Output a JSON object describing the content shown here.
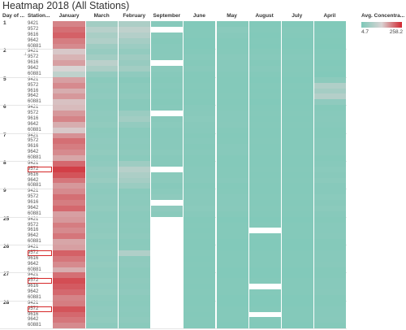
{
  "title": "Heatmap 2018 (All Stations)",
  "headers": {
    "day": "Day of ...",
    "station": "Station..."
  },
  "legend": {
    "title": "Avg. Concentra...",
    "min": "4.7",
    "max": "258.2"
  },
  "highlighted_station": "9572",
  "colors": {
    "low": "#7dc8b8",
    "mid": "#d9d4d4",
    "high": "#d1262f",
    "missing": "#ffffff"
  },
  "chart_data": {
    "type": "heatmap",
    "title": "Heatmap 2018 (All Stations)",
    "columns": [
      "January",
      "March",
      "February",
      "September",
      "June",
      "May",
      "August",
      "July",
      "April"
    ],
    "color_legend": {
      "label": "Avg. Concentra...",
      "min": 4.7,
      "max": 258.2
    },
    "days": [
      {
        "day": "1",
        "stations": [
          "9421",
          "9572",
          "9616",
          "9642",
          "60881"
        ],
        "values": [
          [
            190,
            55,
            70,
            18,
            12,
            14,
            12,
            12,
            10
          ],
          [
            205,
            85,
            95,
            null,
            15,
            22,
            14,
            16,
            12
          ],
          [
            215,
            65,
            80,
            20,
            14,
            18,
            12,
            14,
            13
          ],
          [
            195,
            75,
            60,
            16,
            12,
            15,
            13,
            12,
            11
          ],
          [
            185,
            50,
            48,
            18,
            12,
            14,
            12,
            12,
            10
          ]
        ]
      },
      {
        "day": "2",
        "stations": [
          "9421",
          "9572",
          "9616",
          "9642",
          "60881"
        ],
        "values": [
          [
            140,
            40,
            35,
            18,
            15,
            16,
            16,
            15,
            13
          ],
          [
            155,
            55,
            50,
            20,
            18,
            20,
            18,
            17,
            14
          ],
          [
            170,
            90,
            40,
            null,
            16,
            18,
            15,
            15,
            12
          ],
          [
            130,
            70,
            55,
            22,
            20,
            19,
            18,
            16,
            15
          ],
          [
            95,
            35,
            30,
            18,
            14,
            16,
            15,
            15,
            12
          ]
        ]
      },
      {
        "day": "5",
        "stations": [
          "9421",
          "9572",
          "9616",
          "9642",
          "60881"
        ],
        "values": [
          [
            170,
            22,
            18,
            16,
            14,
            14,
            12,
            12,
            25
          ],
          [
            185,
            28,
            24,
            18,
            16,
            15,
            14,
            14,
            75
          ],
          [
            160,
            26,
            22,
            16,
            15,
            14,
            13,
            13,
            60
          ],
          [
            175,
            30,
            28,
            18,
            16,
            16,
            14,
            14,
            80
          ],
          [
            145,
            22,
            20,
            16,
            14,
            14,
            12,
            13,
            30
          ]
        ]
      },
      {
        "day": "6",
        "stations": [
          "9421",
          "9572",
          "9616",
          "9642",
          "60881"
        ],
        "values": [
          [
            150,
            24,
            20,
            18,
            18,
            16,
            14,
            14,
            16
          ],
          [
            175,
            30,
            45,
            null,
            20,
            18,
            16,
            16,
            18
          ],
          [
            190,
            28,
            55,
            20,
            22,
            18,
            15,
            15,
            20
          ],
          [
            160,
            32,
            35,
            22,
            20,
            20,
            16,
            16,
            18
          ],
          [
            140,
            24,
            22,
            18,
            18,
            16,
            14,
            14,
            16
          ]
        ]
      },
      {
        "day": "7",
        "stations": [
          "9421",
          "9572",
          "9616",
          "9642",
          "60881"
        ],
        "values": [
          [
            180,
            26,
            22,
            18,
            16,
            15,
            14,
            14,
            16
          ],
          [
            205,
            30,
            26,
            20,
            18,
            16,
            16,
            15,
            18
          ],
          [
            195,
            28,
            24,
            20,
            16,
            18,
            15,
            14,
            18
          ],
          [
            185,
            32,
            28,
            22,
            18,
            18,
            16,
            16,
            20
          ],
          [
            165,
            26,
            22,
            18,
            16,
            15,
            14,
            14,
            16
          ]
        ]
      },
      {
        "day": "8",
        "stations": [
          "9421",
          "9572",
          "9616",
          "9642",
          "60881"
        ],
        "values": [
          [
            210,
            30,
            50,
            18,
            16,
            14,
            14,
            14,
            18
          ],
          [
            240,
            40,
            85,
            null,
            18,
            16,
            16,
            16,
            22
          ],
          [
            225,
            35,
            70,
            22,
            18,
            16,
            15,
            15,
            20
          ],
          [
            200,
            42,
            60,
            24,
            20,
            18,
            16,
            16,
            24
          ],
          [
            175,
            30,
            45,
            18,
            16,
            15,
            14,
            14,
            18
          ]
        ]
      },
      {
        "day": "9",
        "stations": [
          "9421",
          "9572",
          "9616",
          "9642",
          "60881"
        ],
        "values": [
          [
            185,
            26,
            22,
            22,
            18,
            16,
            14,
            14,
            18
          ],
          [
            205,
            30,
            26,
            28,
            20,
            18,
            16,
            16,
            22
          ],
          [
            195,
            28,
            24,
            null,
            20,
            18,
            15,
            15,
            20
          ],
          [
            210,
            32,
            28,
            30,
            22,
            20,
            16,
            16,
            24
          ],
          [
            170,
            26,
            22,
            22,
            18,
            16,
            14,
            14,
            18
          ]
        ]
      },
      {
        "day": "25",
        "stations": [
          "9421",
          "9572",
          "9616",
          "9642",
          "60881"
        ],
        "values": [
          [
            175,
            26,
            22,
            null,
            14,
            12,
            12,
            12,
            16
          ],
          [
            195,
            30,
            26,
            null,
            16,
            14,
            14,
            14,
            18
          ],
          [
            185,
            28,
            24,
            null,
            15,
            14,
            null,
            14,
            18
          ],
          [
            200,
            32,
            28,
            null,
            16,
            15,
            14,
            15,
            20
          ],
          [
            165,
            26,
            22,
            null,
            14,
            12,
            12,
            12,
            16
          ]
        ]
      },
      {
        "day": "26",
        "stations": [
          "9421",
          "9572",
          "9616",
          "9642",
          "60881"
        ],
        "values": [
          [
            170,
            28,
            24,
            null,
            14,
            12,
            12,
            12,
            16
          ],
          [
            215,
            32,
            75,
            null,
            16,
            14,
            14,
            14,
            18
          ],
          [
            200,
            30,
            28,
            null,
            15,
            14,
            14,
            14,
            18
          ],
          [
            185,
            34,
            30,
            null,
            16,
            15,
            14,
            15,
            20
          ],
          [
            160,
            28,
            24,
            null,
            14,
            12,
            12,
            12,
            16
          ]
        ]
      },
      {
        "day": "27",
        "stations": [
          "9421",
          "9572",
          "9616",
          "9642",
          "60881"
        ],
        "values": [
          [
            205,
            28,
            24,
            null,
            14,
            12,
            12,
            12,
            16
          ],
          [
            230,
            32,
            28,
            null,
            16,
            14,
            14,
            14,
            18
          ],
          [
            220,
            30,
            26,
            null,
            15,
            14,
            null,
            14,
            18
          ],
          [
            210,
            34,
            30,
            null,
            16,
            15,
            14,
            15,
            20
          ],
          [
            190,
            28,
            24,
            null,
            14,
            12,
            12,
            12,
            16
          ]
        ]
      },
      {
        "day": "28",
        "stations": [
          "9421",
          "9572",
          "9616",
          "9642",
          "60881"
        ],
        "values": [
          [
            195,
            26,
            22,
            null,
            14,
            12,
            12,
            12,
            16
          ],
          [
            225,
            30,
            26,
            null,
            16,
            14,
            14,
            14,
            18
          ],
          [
            210,
            28,
            24,
            null,
            15,
            14,
            null,
            14,
            18
          ],
          [
            200,
            32,
            28,
            null,
            16,
            15,
            14,
            15,
            20
          ],
          [
            185,
            26,
            22,
            null,
            14,
            12,
            12,
            12,
            16
          ]
        ]
      }
    ]
  }
}
